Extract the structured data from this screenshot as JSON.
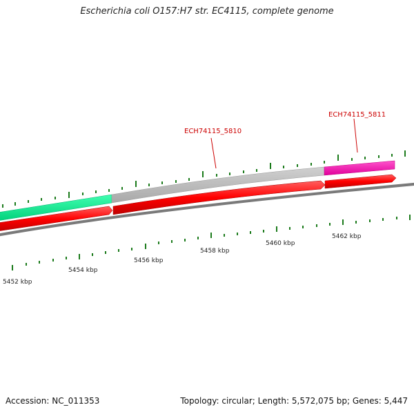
{
  "header": {
    "title": "Escherichia coli O157:H7 str. EC4115, complete genome"
  },
  "footer": {
    "accession": "Accession: NC_011353",
    "summary": "Topology: circular; Length: 5,572,075 bp; Genes: 5,447"
  },
  "gene_labels": {
    "gene_5810": "ECH74115_5810",
    "gene_5811": "ECH74115_5811"
  },
  "scale_labels": [
    "5452 kbp",
    "5454 kbp",
    "5456 kbp",
    "5458 kbp",
    "5460 kbp",
    "5462 kbp"
  ],
  "colors": {
    "forward_gene_pink": "#ff00aa",
    "forward_gene_grey": "#b8b8b8",
    "forward_gene_green": "#00e68a",
    "reverse_gene_red": "#ff0000",
    "backbone": "#808080",
    "tick_green": "#1a7a1a",
    "label_red": "#cc0000"
  }
}
